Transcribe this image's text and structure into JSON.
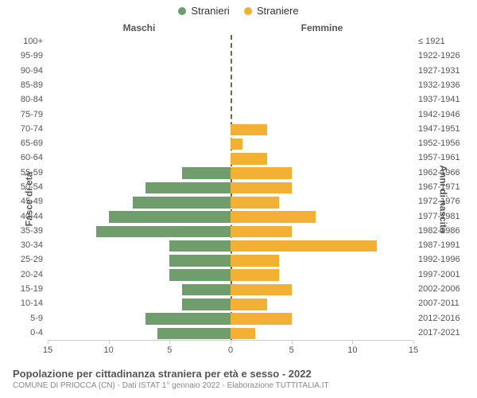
{
  "legend": {
    "male": "Stranieri",
    "female": "Straniere"
  },
  "gender_headers": {
    "male": "Maschi",
    "female": "Femmine"
  },
  "axis_titles": {
    "left": "Fasce di età",
    "right": "Anni di nascita"
  },
  "colors": {
    "male": "#6f9e6c",
    "female": "#f2b134",
    "center_line": "#6b6b3d",
    "background": "#ffffff"
  },
  "x_axis": {
    "max": 15,
    "ticks": [
      15,
      10,
      5,
      0,
      5,
      10,
      15
    ]
  },
  "rows": [
    {
      "age": "100+",
      "birth": "≤ 1921",
      "m": 0,
      "f": 0
    },
    {
      "age": "95-99",
      "birth": "1922-1926",
      "m": 0,
      "f": 0
    },
    {
      "age": "90-94",
      "birth": "1927-1931",
      "m": 0,
      "f": 0
    },
    {
      "age": "85-89",
      "birth": "1932-1936",
      "m": 0,
      "f": 0
    },
    {
      "age": "80-84",
      "birth": "1937-1941",
      "m": 0,
      "f": 0
    },
    {
      "age": "75-79",
      "birth": "1942-1946",
      "m": 0,
      "f": 0
    },
    {
      "age": "70-74",
      "birth": "1947-1951",
      "m": 0,
      "f": 3
    },
    {
      "age": "65-69",
      "birth": "1952-1956",
      "m": 0,
      "f": 1
    },
    {
      "age": "60-64",
      "birth": "1957-1961",
      "m": 0,
      "f": 3
    },
    {
      "age": "55-59",
      "birth": "1962-1966",
      "m": 4,
      "f": 5
    },
    {
      "age": "50-54",
      "birth": "1967-1971",
      "m": 7,
      "f": 5
    },
    {
      "age": "45-49",
      "birth": "1972-1976",
      "m": 8,
      "f": 4
    },
    {
      "age": "40-44",
      "birth": "1977-1981",
      "m": 10,
      "f": 7
    },
    {
      "age": "35-39",
      "birth": "1982-1986",
      "m": 11,
      "f": 5
    },
    {
      "age": "30-34",
      "birth": "1987-1991",
      "m": 5,
      "f": 12
    },
    {
      "age": "25-29",
      "birth": "1992-1996",
      "m": 5,
      "f": 4
    },
    {
      "age": "20-24",
      "birth": "1997-2001",
      "m": 5,
      "f": 4
    },
    {
      "age": "15-19",
      "birth": "2002-2006",
      "m": 4,
      "f": 5
    },
    {
      "age": "10-14",
      "birth": "2007-2011",
      "m": 4,
      "f": 3
    },
    {
      "age": "5-9",
      "birth": "2012-2016",
      "m": 7,
      "f": 5
    },
    {
      "age": "0-4",
      "birth": "2017-2021",
      "m": 6,
      "f": 2
    }
  ],
  "title": "Popolazione per cittadinanza straniera per età e sesso - 2022",
  "subtitle": "COMUNE DI PRIOCCA (CN) - Dati ISTAT 1° gennaio 2022 - Elaborazione TUTTITALIA.IT",
  "typography": {
    "legend_fontsize": 13,
    "header_fontsize": 12,
    "label_fontsize": 11,
    "title_fontsize": 13,
    "subtitle_fontsize": 10
  }
}
